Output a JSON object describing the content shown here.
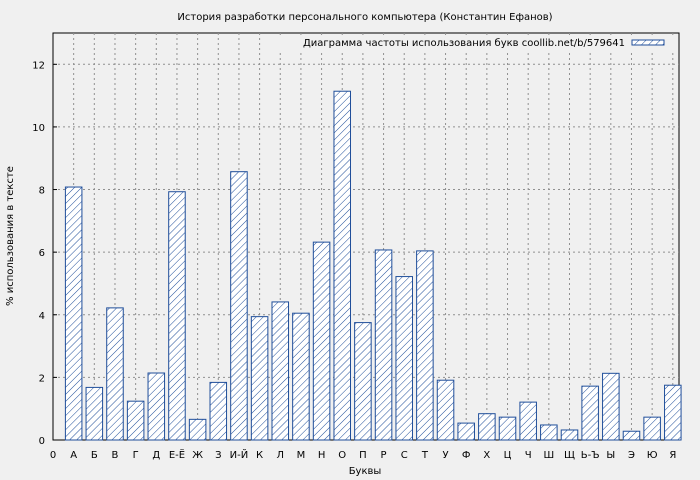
{
  "chart_data": {
    "type": "bar",
    "title": "История разработки персонального компьютера (Константин Ефанов)",
    "xlabel": "Буквы",
    "ylabel": "% использования в тексте",
    "ylim": [
      0,
      13
    ],
    "yticks": [
      0,
      2,
      4,
      6,
      8,
      10,
      12
    ],
    "x_start_label": "0",
    "grid": true,
    "legend_position": "top-right",
    "categories": [
      "А",
      "Б",
      "В",
      "Г",
      "Д",
      "Е-Ё",
      "Ж",
      "З",
      "И-Й",
      "К",
      "Л",
      "М",
      "Н",
      "О",
      "П",
      "Р",
      "С",
      "Т",
      "У",
      "Ф",
      "Х",
      "Ц",
      "Ч",
      "Ш",
      "Щ",
      "Ь-Ъ",
      "Ы",
      "Э",
      "Ю",
      "Я"
    ],
    "series": [
      {
        "name": "Диаграмма частоты использования букв coollib.net/b/579641",
        "values": [
          8.08,
          1.68,
          4.22,
          1.24,
          2.14,
          7.93,
          0.66,
          1.84,
          8.57,
          3.94,
          4.41,
          4.05,
          6.32,
          11.14,
          3.75,
          6.07,
          5.22,
          6.04,
          1.91,
          0.54,
          0.84,
          0.73,
          1.21,
          0.48,
          0.32,
          1.72,
          2.13,
          0.28,
          0.73,
          1.75
        ],
        "color": "#1f4e9a"
      }
    ]
  }
}
